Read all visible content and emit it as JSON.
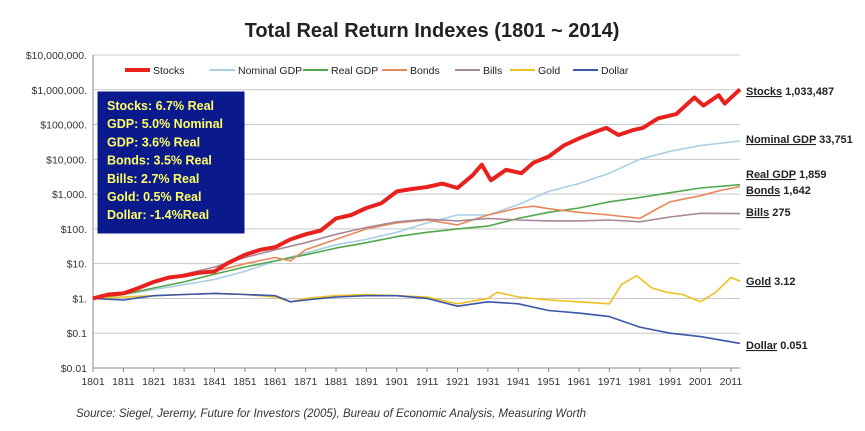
{
  "chart_data": {
    "type": "line",
    "title": "Total Real Return Indexes (1801 ~ 2014)",
    "yscale": "log",
    "ylim": [
      0.01,
      10000000
    ],
    "xlim": [
      1801,
      2014
    ],
    "y_ticks": [
      {
        "value": 10000000,
        "label": "$10,000,000."
      },
      {
        "value": 1000000,
        "label": "$1,000,000."
      },
      {
        "value": 100000,
        "label": "$100,000."
      },
      {
        "value": 10000,
        "label": "$10,000."
      },
      {
        "value": 1000,
        "label": "$1,000."
      },
      {
        "value": 100,
        "label": "$100."
      },
      {
        "value": 10,
        "label": "$10."
      },
      {
        "value": 1,
        "label": "$1."
      },
      {
        "value": 0.1,
        "label": "$0.1"
      },
      {
        "value": 0.01,
        "label": "$0.01"
      }
    ],
    "x_ticks": [
      "1801",
      "1811",
      "1821",
      "1831",
      "1841",
      "1851",
      "1861",
      "1871",
      "1881",
      "1891",
      "1901",
      "1911",
      "1921",
      "1931",
      "1941",
      "1951",
      "1961",
      "1971",
      "1981",
      "1991",
      "2001",
      "2011"
    ],
    "grid": "horizontal",
    "legend_position": "top",
    "series": [
      {
        "name": "Stocks",
        "color": "#e8201e",
        "end_label": "Stocks",
        "end_value_text": "1,033,487",
        "points": [
          [
            1801,
            1
          ],
          [
            1806,
            1.3
          ],
          [
            1811,
            1.4
          ],
          [
            1816,
            2
          ],
          [
            1821,
            3
          ],
          [
            1826,
            4
          ],
          [
            1831,
            4.5
          ],
          [
            1836,
            5.5
          ],
          [
            1841,
            6
          ],
          [
            1845,
            10
          ],
          [
            1851,
            18
          ],
          [
            1856,
            25
          ],
          [
            1861,
            30
          ],
          [
            1866,
            50
          ],
          [
            1871,
            70
          ],
          [
            1876,
            90
          ],
          [
            1881,
            200
          ],
          [
            1886,
            250
          ],
          [
            1891,
            400
          ],
          [
            1896,
            550
          ],
          [
            1901,
            1200
          ],
          [
            1906,
            1400
          ],
          [
            1911,
            1600
          ],
          [
            1916,
            2000
          ],
          [
            1921,
            1500
          ],
          [
            1926,
            3500
          ],
          [
            1929,
            7000
          ],
          [
            1932,
            2500
          ],
          [
            1937,
            5000
          ],
          [
            1942,
            4000
          ],
          [
            1946,
            8000
          ],
          [
            1951,
            12000
          ],
          [
            1956,
            25000
          ],
          [
            1961,
            40000
          ],
          [
            1966,
            60000
          ],
          [
            1970,
            80000
          ],
          [
            1974,
            50000
          ],
          [
            1979,
            70000
          ],
          [
            1982,
            80000
          ],
          [
            1987,
            150000
          ],
          [
            1993,
            200000
          ],
          [
            1999,
            600000
          ],
          [
            2002,
            350000
          ],
          [
            2007,
            700000
          ],
          [
            2009,
            400000
          ],
          [
            2014,
            1033487
          ]
        ]
      },
      {
        "name": "Nominal GDP",
        "color": "#a9cfe6",
        "end_label": "Nominal GDP",
        "end_value_text": "33,751",
        "points": [
          [
            1801,
            1
          ],
          [
            1811,
            1.3
          ],
          [
            1821,
            1.8
          ],
          [
            1831,
            2.5
          ],
          [
            1841,
            3.5
          ],
          [
            1851,
            6
          ],
          [
            1861,
            12
          ],
          [
            1871,
            20
          ],
          [
            1881,
            35
          ],
          [
            1891,
            50
          ],
          [
            1901,
            80
          ],
          [
            1911,
            150
          ],
          [
            1921,
            250
          ],
          [
            1931,
            250
          ],
          [
            1941,
            500
          ],
          [
            1951,
            1200
          ],
          [
            1961,
            2000
          ],
          [
            1971,
            4000
          ],
          [
            1981,
            10000
          ],
          [
            1991,
            17000
          ],
          [
            2001,
            25000
          ],
          [
            2014,
            33751
          ]
        ]
      },
      {
        "name": "Real GDP",
        "color": "#4fa84a",
        "end_label": "Real GDP",
        "end_value_text": "1,859",
        "points": [
          [
            1801,
            1
          ],
          [
            1811,
            1.3
          ],
          [
            1821,
            2
          ],
          [
            1831,
            3
          ],
          [
            1841,
            5
          ],
          [
            1851,
            8
          ],
          [
            1861,
            12
          ],
          [
            1871,
            18
          ],
          [
            1881,
            28
          ],
          [
            1891,
            40
          ],
          [
            1901,
            60
          ],
          [
            1911,
            80
          ],
          [
            1921,
            100
          ],
          [
            1931,
            120
          ],
          [
            1941,
            200
          ],
          [
            1951,
            300
          ],
          [
            1961,
            400
          ],
          [
            1971,
            600
          ],
          [
            1981,
            800
          ],
          [
            1991,
            1100
          ],
          [
            2001,
            1500
          ],
          [
            2014,
            1859
          ]
        ]
      },
      {
        "name": "Bonds",
        "color": "#e8875a",
        "end_label": "Bonds",
        "end_value_text": "1,642",
        "points": [
          [
            1801,
            1
          ],
          [
            1811,
            1.5
          ],
          [
            1821,
            3
          ],
          [
            1831,
            4.5
          ],
          [
            1841,
            6
          ],
          [
            1851,
            10
          ],
          [
            1861,
            15
          ],
          [
            1866,
            12
          ],
          [
            1871,
            25
          ],
          [
            1881,
            50
          ],
          [
            1891,
            100
          ],
          [
            1901,
            150
          ],
          [
            1911,
            180
          ],
          [
            1921,
            130
          ],
          [
            1931,
            250
          ],
          [
            1941,
            400
          ],
          [
            1946,
            450
          ],
          [
            1951,
            380
          ],
          [
            1961,
            300
          ],
          [
            1971,
            250
          ],
          [
            1981,
            200
          ],
          [
            1986,
            350
          ],
          [
            1991,
            600
          ],
          [
            2001,
            900
          ],
          [
            2008,
            1300
          ],
          [
            2014,
            1642
          ]
        ]
      },
      {
        "name": "Bills",
        "color": "#a8899a",
        "end_label": "Bills",
        "end_value_text": "275",
        "points": [
          [
            1801,
            1
          ],
          [
            1811,
            1.4
          ],
          [
            1821,
            3
          ],
          [
            1831,
            5
          ],
          [
            1841,
            8
          ],
          [
            1851,
            15
          ],
          [
            1861,
            25
          ],
          [
            1871,
            40
          ],
          [
            1881,
            70
          ],
          [
            1891,
            110
          ],
          [
            1901,
            160
          ],
          [
            1911,
            190
          ],
          [
            1921,
            170
          ],
          [
            1931,
            200
          ],
          [
            1941,
            180
          ],
          [
            1951,
            170
          ],
          [
            1961,
            170
          ],
          [
            1971,
            180
          ],
          [
            1981,
            160
          ],
          [
            1991,
            220
          ],
          [
            2001,
            280
          ],
          [
            2014,
            275
          ]
        ]
      },
      {
        "name": "Gold",
        "color": "#f0c020",
        "end_label": "Gold",
        "end_value_text": "3.12",
        "points": [
          [
            1801,
            1
          ],
          [
            1811,
            1.1
          ],
          [
            1821,
            1.2
          ],
          [
            1831,
            1.3
          ],
          [
            1841,
            1.4
          ],
          [
            1851,
            1.3
          ],
          [
            1861,
            1.1
          ],
          [
            1866,
            0.8
          ],
          [
            1871,
            1.0
          ],
          [
            1881,
            1.2
          ],
          [
            1891,
            1.3
          ],
          [
            1901,
            1.2
          ],
          [
            1911,
            1.1
          ],
          [
            1921,
            0.7
          ],
          [
            1931,
            1.0
          ],
          [
            1934,
            1.5
          ],
          [
            1941,
            1.1
          ],
          [
            1951,
            0.9
          ],
          [
            1961,
            0.8
          ],
          [
            1971,
            0.7
          ],
          [
            1975,
            2.5
          ],
          [
            1980,
            4.5
          ],
          [
            1985,
            2.0
          ],
          [
            1990,
            1.5
          ],
          [
            1995,
            1.3
          ],
          [
            2001,
            0.8
          ],
          [
            2006,
            1.5
          ],
          [
            2011,
            4.0
          ],
          [
            2014,
            3.12
          ]
        ]
      },
      {
        "name": "Dollar",
        "color": "#3a56a8",
        "end_label": "Dollar",
        "end_value_text": "0.051",
        "points": [
          [
            1801,
            1
          ],
          [
            1811,
            0.9
          ],
          [
            1821,
            1.2
          ],
          [
            1831,
            1.3
          ],
          [
            1841,
            1.4
          ],
          [
            1851,
            1.3
          ],
          [
            1861,
            1.2
          ],
          [
            1866,
            0.8
          ],
          [
            1871,
            0.9
          ],
          [
            1881,
            1.1
          ],
          [
            1891,
            1.2
          ],
          [
            1901,
            1.2
          ],
          [
            1911,
            1.0
          ],
          [
            1921,
            0.6
          ],
          [
            1931,
            0.8
          ],
          [
            1941,
            0.7
          ],
          [
            1951,
            0.45
          ],
          [
            1961,
            0.38
          ],
          [
            1971,
            0.3
          ],
          [
            1981,
            0.15
          ],
          [
            1991,
            0.1
          ],
          [
            2001,
            0.08
          ],
          [
            2014,
            0.051
          ]
        ]
      }
    ],
    "annotation_box": {
      "lines": [
        "Stocks: 6.7% Real",
        "GDP: 5.0% Nominal",
        "GDP: 3.6% Real",
        "Bonds: 3.5% Real",
        "Bills:    2.7% Real",
        "Gold:   0.5% Real",
        "Dollar: -1.4%Real"
      ],
      "background": "#0a1a8c",
      "text_color": "#ffff66"
    },
    "source": "Source: Siegel, Jeremy, Future for Investors (2005), Bureau of Economic Analysis, Measuring Worth"
  }
}
